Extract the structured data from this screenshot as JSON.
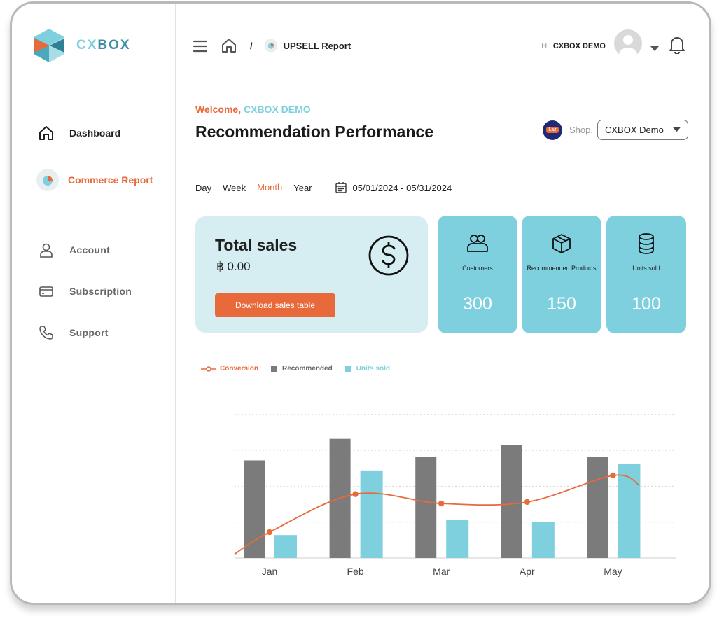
{
  "brand": {
    "name": "CXBOX",
    "name_part1": "CX",
    "name_part2": "BOX"
  },
  "sidebar": {
    "items": [
      {
        "label": "Dashboard",
        "icon": "home-icon",
        "color": "#1f1f1f"
      },
      {
        "label": "Commerce Report",
        "icon": "report-icon",
        "color": "#e8693a"
      },
      {
        "label": "Account",
        "icon": "user-icon"
      },
      {
        "label": "Subscription",
        "icon": "card-icon"
      },
      {
        "label": "Support",
        "icon": "phone-icon"
      }
    ]
  },
  "header": {
    "breadcrumb_sep": "/",
    "breadcrumb_page": "UPSELL Report",
    "greeting": "Hi,",
    "user_name": "CXBOX DEMO"
  },
  "main": {
    "welcome_label": "Welcome,",
    "welcome_name": "CXBOX DEMO",
    "title": "Recommendation Performance",
    "shop_label": "Shop,",
    "shop_value": "CXBOX Demo",
    "shop_icon_text": "Laz",
    "periods": [
      "Day",
      "Week",
      "Month",
      "Year"
    ],
    "active_period": "Month",
    "date_range": "05/01/2024 - 05/31/2024"
  },
  "sales": {
    "title": "Total sales",
    "value": "฿ 0.00",
    "button": "Download sales table"
  },
  "stats": [
    {
      "label": "Customers",
      "value": "300",
      "icon": "people-icon"
    },
    {
      "label": "Recommended Products",
      "value": "150",
      "icon": "box-icon"
    },
    {
      "label": "Units sold",
      "value": "100",
      "icon": "database-icon"
    }
  ],
  "colors": {
    "accent": "#e8693a",
    "teal": "#7fd0de",
    "light_teal": "#d6eef2",
    "gray_bar": "#7b7b7b"
  },
  "chart_data": {
    "type": "bar",
    "categories": [
      "Jan",
      "Feb",
      "Mar",
      "Apr",
      "May"
    ],
    "series": [
      {
        "name": "Recommended",
        "type": "bar",
        "color": "#7b7b7b",
        "values": [
          136,
          166,
          141,
          157,
          141
        ]
      },
      {
        "name": "Units sold",
        "type": "bar",
        "color": "#7fd0de",
        "values": [
          32,
          122,
          53,
          50,
          131
        ]
      },
      {
        "name": "Conversion",
        "type": "line",
        "color": "#e8693a",
        "values": [
          36,
          89,
          76,
          78,
          115
        ]
      }
    ],
    "ylim": [
      0,
      230
    ],
    "grid": true,
    "legend": "top-left"
  }
}
